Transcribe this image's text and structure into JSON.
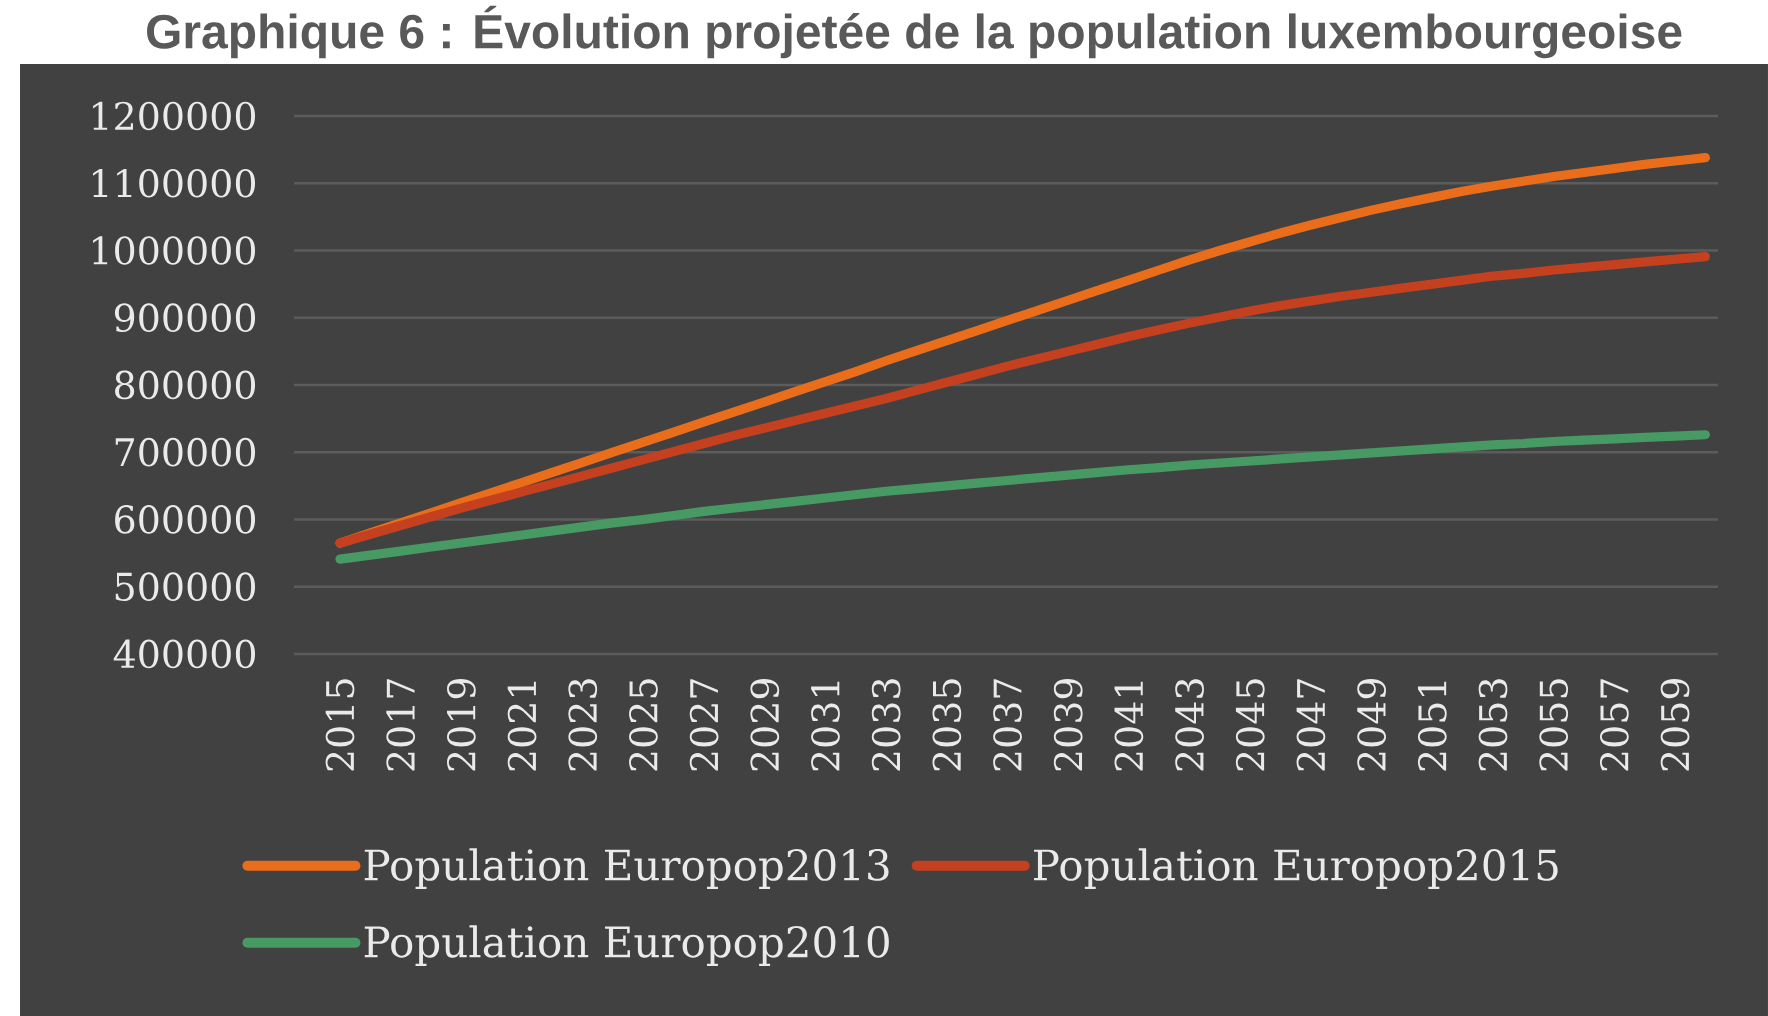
{
  "chart_data": {
    "type": "line",
    "title": "Graphique 6 : Évolution projetée de la population luxembourgeoise",
    "categories": [
      "2015",
      null,
      "2017",
      null,
      "2019",
      null,
      "2021",
      null,
      "2023",
      null,
      "2025",
      null,
      "2027",
      null,
      "2029",
      null,
      "2031",
      null,
      "2033",
      null,
      "2035",
      null,
      "2037",
      null,
      "2039",
      null,
      "2041",
      null,
      "2043",
      null,
      "2045",
      null,
      "2047",
      null,
      "2049",
      null,
      "2051",
      null,
      "2053",
      null,
      "2055",
      null,
      "2057",
      null,
      "2059",
      null
    ],
    "series": [
      {
        "name": "Population Europop2013",
        "color": "#e96d1b",
        "values": [
          565000,
          580000,
          595000,
          610000,
          625000,
          640000,
          655000,
          670000,
          685000,
          700000,
          715000,
          730000,
          745000,
          760000,
          775000,
          790000,
          805000,
          820000,
          836000,
          851000,
          866000,
          881000,
          896000,
          911000,
          926000,
          941000,
          956000,
          971000,
          986000,
          1000000,
          1013000,
          1026000,
          1038000,
          1049000,
          1060000,
          1070000,
          1079000,
          1088000,
          1096000,
          1103000,
          1110000,
          1116000,
          1122000,
          1128000,
          1133000,
          1138000
        ]
      },
      {
        "name": "Population Europop2015",
        "color": "#c4401f",
        "values": [
          565000,
          578000,
          591000,
          604000,
          617000,
          629000,
          641000,
          653000,
          665000,
          677000,
          689000,
          701000,
          713000,
          725000,
          736000,
          747000,
          758000,
          769000,
          780000,
          792000,
          804000,
          816000,
          828000,
          839000,
          850000,
          861000,
          872000,
          882000,
          892000,
          901000,
          910000,
          918000,
          925000,
          932000,
          938000,
          944000,
          950000,
          956000,
          962000,
          966000,
          971000,
          975000,
          979000,
          983000,
          987000,
          991000
        ]
      },
      {
        "name": "Population Europop2010",
        "color": "#479a63",
        "values": [
          541000,
          547000,
          553000,
          559000,
          565000,
          571000,
          577000,
          583000,
          589000,
          595000,
          600000,
          606000,
          612000,
          617000,
          622000,
          627000,
          632000,
          637000,
          642000,
          646000,
          650000,
          654000,
          658000,
          662000,
          666000,
          670000,
          674000,
          677000,
          681000,
          684000,
          687000,
          690000,
          693000,
          696000,
          699000,
          702000,
          705000,
          708000,
          711000,
          713000,
          716000,
          718000,
          720000,
          722000,
          724000,
          726000
        ]
      }
    ],
    "ylim": [
      400000,
      1200000
    ],
    "yticks": [
      400000,
      500000,
      600000,
      700000,
      800000,
      900000,
      1000000,
      1100000,
      1200000
    ],
    "grid": "y",
    "legend": "bottom"
  }
}
